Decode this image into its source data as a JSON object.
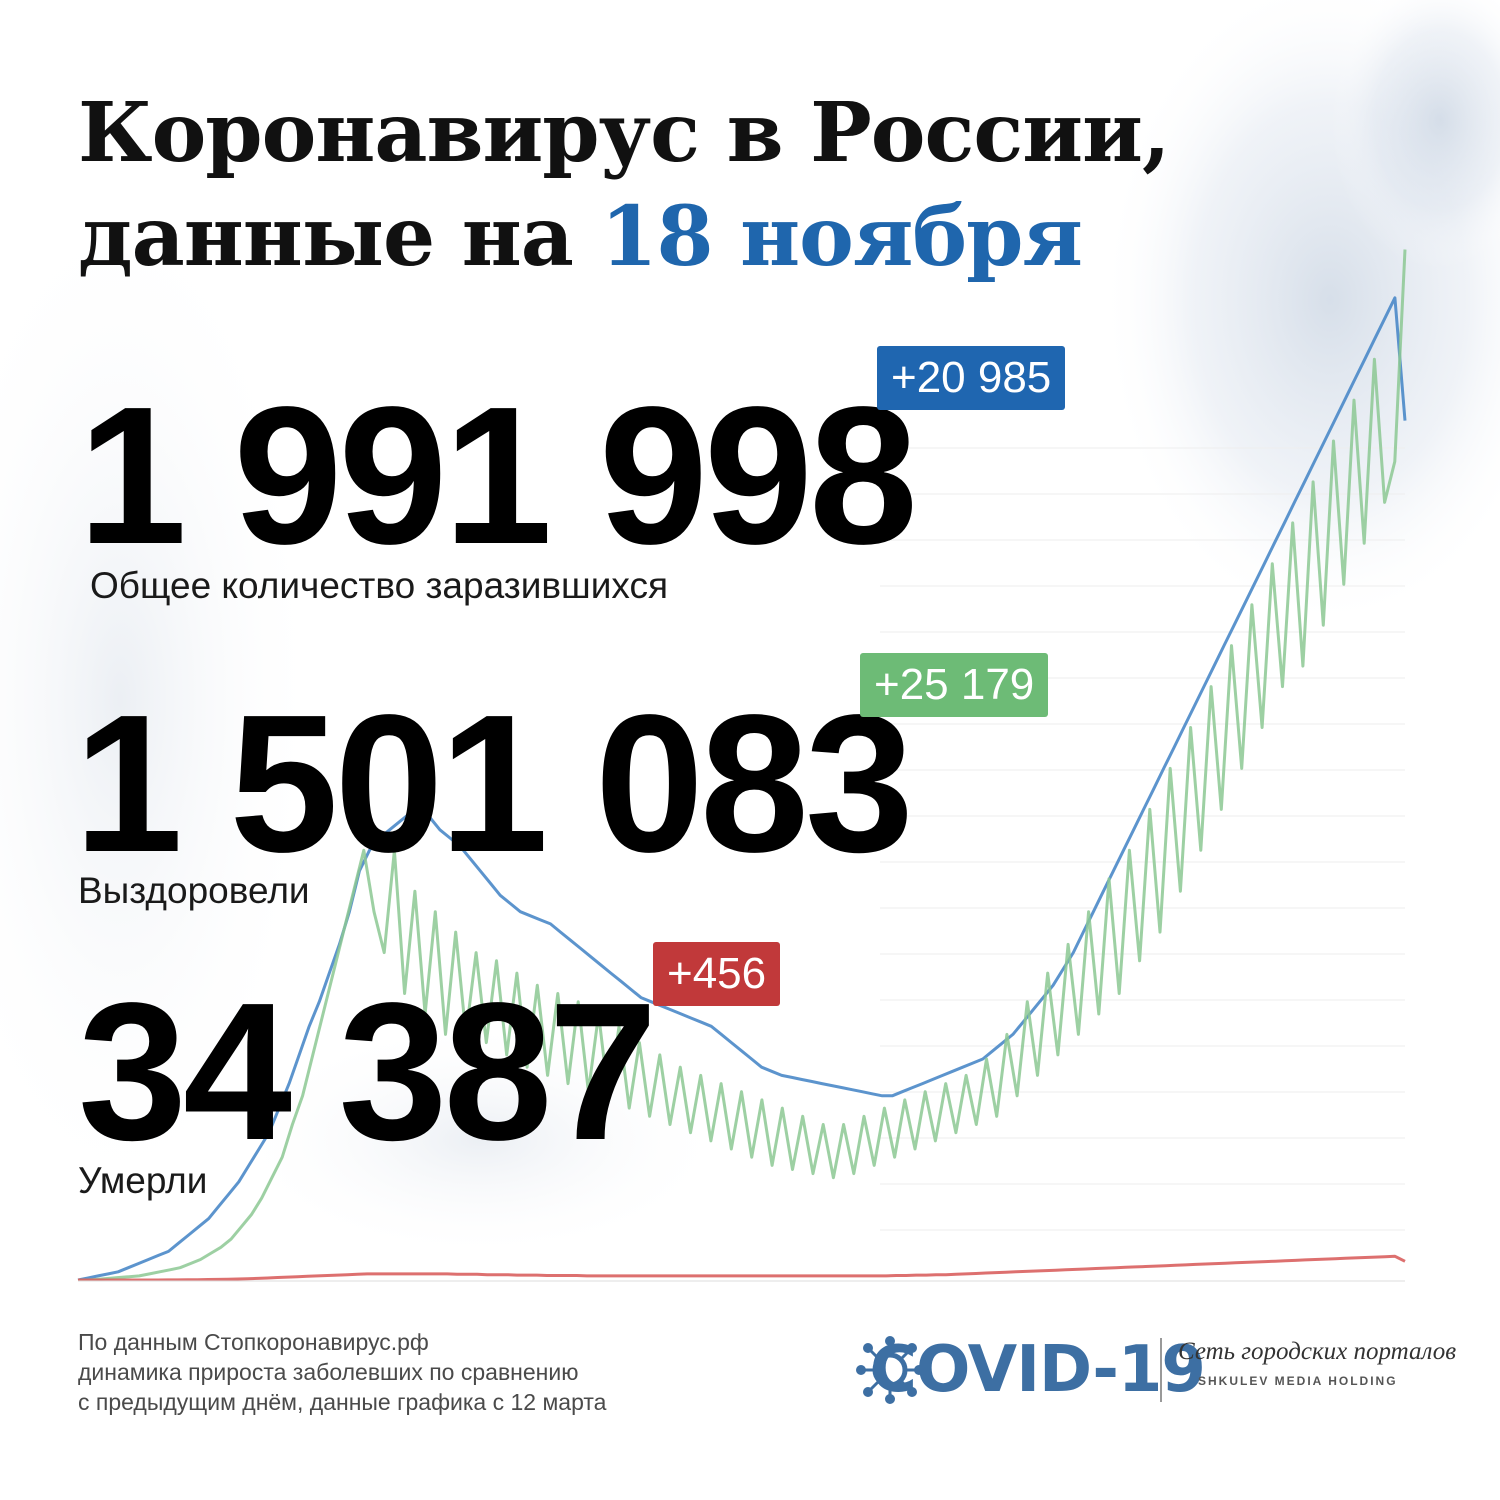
{
  "header": {
    "title_line1": "Коронавирус в России,",
    "title_line2_prefix": "данные на ",
    "title_date": "18 ноября"
  },
  "stats": {
    "infected": {
      "value": "1 991 998",
      "delta": "+20 985",
      "label": "Общее количество заразившихся"
    },
    "recovered": {
      "value": "1 501 083",
      "delta": "+25 179",
      "label": "Выздоровели"
    },
    "deaths": {
      "value": "34 387",
      "delta": "+456",
      "label": "Умерли"
    }
  },
  "footer": {
    "line1": "По данным Стопкоронавирус.рф",
    "line2": "динамика прироста заболевших по сравнению",
    "line3": "с предыдущим днём, данные графика с 12 марта"
  },
  "logo": {
    "title": "COVID-19",
    "network": "Сеть городских порталов",
    "holding": "SHKULEV MEDIA HOLDING"
  },
  "colors": {
    "infected": "#4a88c8",
    "recovered": "#8cc893",
    "deaths": "#d9605f",
    "date": "#1f66ad"
  },
  "chart_data": {
    "type": "line",
    "x_start": "12 марта",
    "ylim": [
      0,
      27000
    ],
    "series": [
      {
        "key": "infected",
        "values": [
          0,
          50,
          100,
          150,
          200,
          300,
          400,
          500,
          600,
          700,
          900,
          1100,
          1300,
          1500,
          1800,
          2100,
          2400,
          2800,
          3200,
          3600,
          4200,
          4800,
          5500,
          6200,
          6800,
          7500,
          8200,
          9000,
          10000,
          10500,
          10800,
          11000,
          11200,
          11400,
          11500,
          11300,
          11000,
          10800,
          10600,
          10300,
          10000,
          9700,
          9400,
          9200,
          9000,
          8900,
          8800,
          8700,
          8500,
          8300,
          8100,
          7900,
          7700,
          7500,
          7300,
          7100,
          6900,
          6800,
          6700,
          6600,
          6500,
          6400,
          6300,
          6200,
          6000,
          5800,
          5600,
          5400,
          5200,
          5100,
          5000,
          4950,
          4900,
          4850,
          4800,
          4750,
          4700,
          4650,
          4600,
          4550,
          4500,
          4500,
          4600,
          4700,
          4800,
          4900,
          5000,
          5100,
          5200,
          5300,
          5400,
          5600,
          5800,
          6000,
          6300,
          6600,
          6900,
          7200,
          7600,
          8000,
          8500,
          9000,
          9500,
          10000,
          10500,
          11000,
          11500,
          12000,
          12500,
          13000,
          13500,
          14000,
          14500,
          15000,
          15500,
          16000,
          16500,
          17000,
          17500,
          18000,
          18500,
          19000,
          19500,
          20000,
          20500,
          21000,
          21500,
          22000,
          22500,
          23000,
          23500,
          24000,
          21000
        ]
      },
      {
        "key": "recovered",
        "values": [
          0,
          0,
          20,
          40,
          60,
          80,
          100,
          150,
          200,
          250,
          300,
          400,
          500,
          650,
          800,
          1000,
          1300,
          1600,
          2000,
          2500,
          3000,
          3800,
          4500,
          5500,
          6500,
          7500,
          8500,
          9500,
          10500,
          9000,
          8000,
          10500,
          7000,
          9500,
          6500,
          9000,
          6000,
          8500,
          6000,
          8000,
          5800,
          7800,
          5500,
          7500,
          5200,
          7200,
          5000,
          7000,
          4800,
          6800,
          4600,
          6500,
          4400,
          6200,
          4200,
          5800,
          4000,
          5500,
          3800,
          5200,
          3600,
          5000,
          3400,
          4800,
          3200,
          4600,
          3000,
          4400,
          2800,
          4200,
          2700,
          4000,
          2600,
          3800,
          2500,
          3800,
          2600,
          4000,
          2800,
          4200,
          3000,
          4400,
          3200,
          4600,
          3400,
          4800,
          3600,
          5000,
          3800,
          5400,
          4000,
          6000,
          4500,
          6800,
          5000,
          7500,
          5500,
          8200,
          6000,
          9000,
          6500,
          9800,
          7000,
          10500,
          7800,
          11500,
          8500,
          12500,
          9500,
          13500,
          10500,
          14500,
          11500,
          15500,
          12500,
          16500,
          13500,
          17500,
          14500,
          18500,
          15000,
          19500,
          16000,
          20500,
          17000,
          21500,
          18000,
          22500,
          19000,
          20000,
          25179
        ]
      },
      {
        "key": "deaths",
        "values": [
          0,
          0,
          0,
          0,
          0,
          0,
          0,
          0,
          1,
          2,
          3,
          5,
          8,
          12,
          15,
          20,
          25,
          30,
          40,
          50,
          60,
          70,
          80,
          90,
          100,
          110,
          120,
          130,
          140,
          150,
          150,
          150,
          150,
          150,
          150,
          150,
          150,
          150,
          140,
          140,
          140,
          130,
          130,
          130,
          120,
          120,
          120,
          110,
          110,
          110,
          110,
          100,
          100,
          100,
          100,
          100,
          100,
          100,
          100,
          100,
          100,
          100,
          100,
          100,
          100,
          100,
          100,
          100,
          100,
          100,
          100,
          100,
          100,
          100,
          100,
          100,
          100,
          100,
          100,
          100,
          100,
          100,
          110,
          110,
          120,
          120,
          130,
          130,
          140,
          150,
          160,
          170,
          180,
          190,
          200,
          210,
          220,
          230,
          240,
          250,
          260,
          270,
          280,
          290,
          300,
          310,
          320,
          330,
          340,
          350,
          360,
          370,
          380,
          390,
          400,
          410,
          420,
          430,
          440,
          450,
          460,
          470,
          480,
          490,
          500,
          510,
          520,
          530,
          540,
          550,
          560,
          570,
          580,
          456
        ]
      }
    ]
  }
}
